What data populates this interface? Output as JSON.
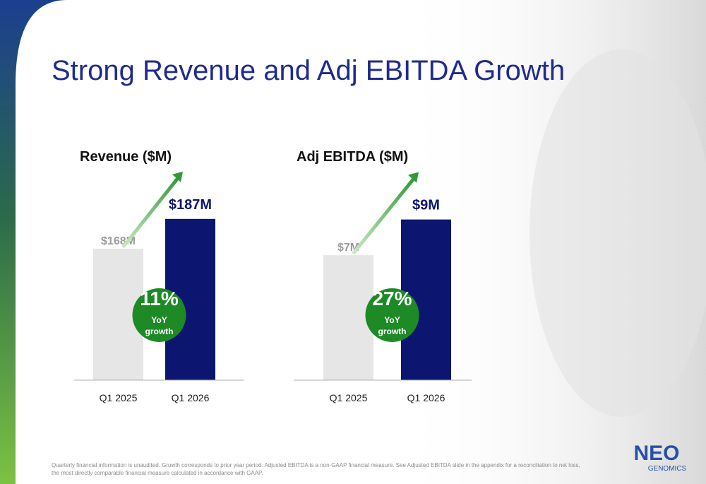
{
  "title": "Strong Revenue and Adj EBITDA Growth",
  "chart_data": [
    {
      "type": "bar",
      "title": "Revenue ($M)",
      "categories": [
        "Q1 2025",
        "Q1 2026"
      ],
      "values": [
        168,
        187
      ],
      "value_labels": [
        "$168M",
        "$187M"
      ],
      "colors": [
        "#e6e6e6",
        "#0c1670"
      ],
      "label_colors": [
        "#9b9b9b",
        "#0c1670"
      ],
      "ylim": [
        84,
        214
      ],
      "growth": "11%",
      "growth_caption": [
        "YoY",
        "growth"
      ]
    },
    {
      "type": "bar",
      "title": "Adj EBITDA ($M)",
      "categories": [
        "Q1 2025",
        "Q1 2026"
      ],
      "values": [
        7,
        9
      ],
      "value_labels": [
        "$7M",
        "$9M"
      ],
      "colors": [
        "#e6e6e6",
        "#0c1670"
      ],
      "label_colors": [
        "#9b9b9b",
        "#0c1670"
      ],
      "ylim": [
        0,
        11.4
      ],
      "growth": "27%",
      "growth_caption": [
        "YoY",
        "growth"
      ]
    }
  ],
  "footnote": "Quarterly financial information is unaudited. Growth corresponds to prior year period. Adjusted EBITDA is a non-GAAP financial measure. See Adjusted EBITDA slide in the appendix for a reconciliation to net loss, the most directly comparable financial measure calculated in accordance with GAAP.",
  "logo": {
    "name": "NEO",
    "sub": "GENOMICS"
  }
}
